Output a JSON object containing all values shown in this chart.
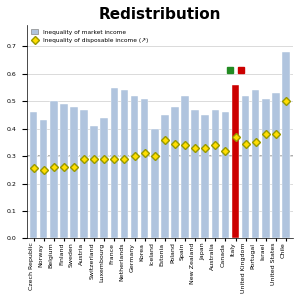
{
  "title": "Redistribution",
  "legend1": "Inequality of market income",
  "legend2": "Inequality of disposable income (↗)",
  "countries": [
    "Czech Republic",
    "Norway",
    "Belgium",
    "Finland",
    "Sweden",
    "Austria",
    "Switzerland",
    "Luxembourg",
    "France",
    "Netherlands",
    "Germany",
    "Korea",
    "Iceland",
    "Estonia",
    "Poland",
    "Spain",
    "New Zealand",
    "Japan",
    "Australia",
    "Canada",
    "Italy",
    "United Kingdom",
    "Portugal",
    "Israel",
    "United States",
    "Chile"
  ],
  "market_income": [
    0.46,
    0.43,
    0.5,
    0.49,
    0.48,
    0.47,
    0.41,
    0.44,
    0.55,
    0.54,
    0.52,
    0.51,
    0.4,
    0.45,
    0.48,
    0.52,
    0.47,
    0.45,
    0.47,
    0.46,
    0.56,
    0.52,
    0.54,
    0.51,
    0.53,
    0.68
  ],
  "disp_income": [
    0.256,
    0.25,
    0.26,
    0.26,
    0.259,
    0.29,
    0.29,
    0.29,
    0.29,
    0.29,
    0.3,
    0.31,
    0.3,
    0.36,
    0.345,
    0.34,
    0.33,
    0.33,
    0.34,
    0.32,
    0.37,
    0.345,
    0.35,
    0.38,
    0.38,
    0.5
  ],
  "bar_color_default": "#b0c4de",
  "bar_color_italy": "#cc0000",
  "dot_facecolor": "#ffdd00",
  "dot_edgecolor": "#999900",
  "italy_index": 20,
  "italy_green_color": "#228B22",
  "italy_red_color": "#cc0000",
  "background_color": "#ffffff",
  "grid_color": "#cccccc",
  "hline_color": "#aaaaaa",
  "title_fontsize": 11,
  "label_fontsize": 4.5
}
